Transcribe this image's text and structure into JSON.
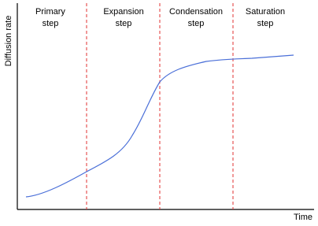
{
  "axes": {
    "y_label": "Diffusion rate",
    "x_label": "Time"
  },
  "steps": [
    {
      "lines": [
        "Primary",
        "step"
      ]
    },
    {
      "lines": [
        "Expansion",
        "step"
      ]
    },
    {
      "lines": [
        "Condensation",
        "step"
      ]
    },
    {
      "lines": [
        "Saturation",
        "step"
      ]
    }
  ]
}
